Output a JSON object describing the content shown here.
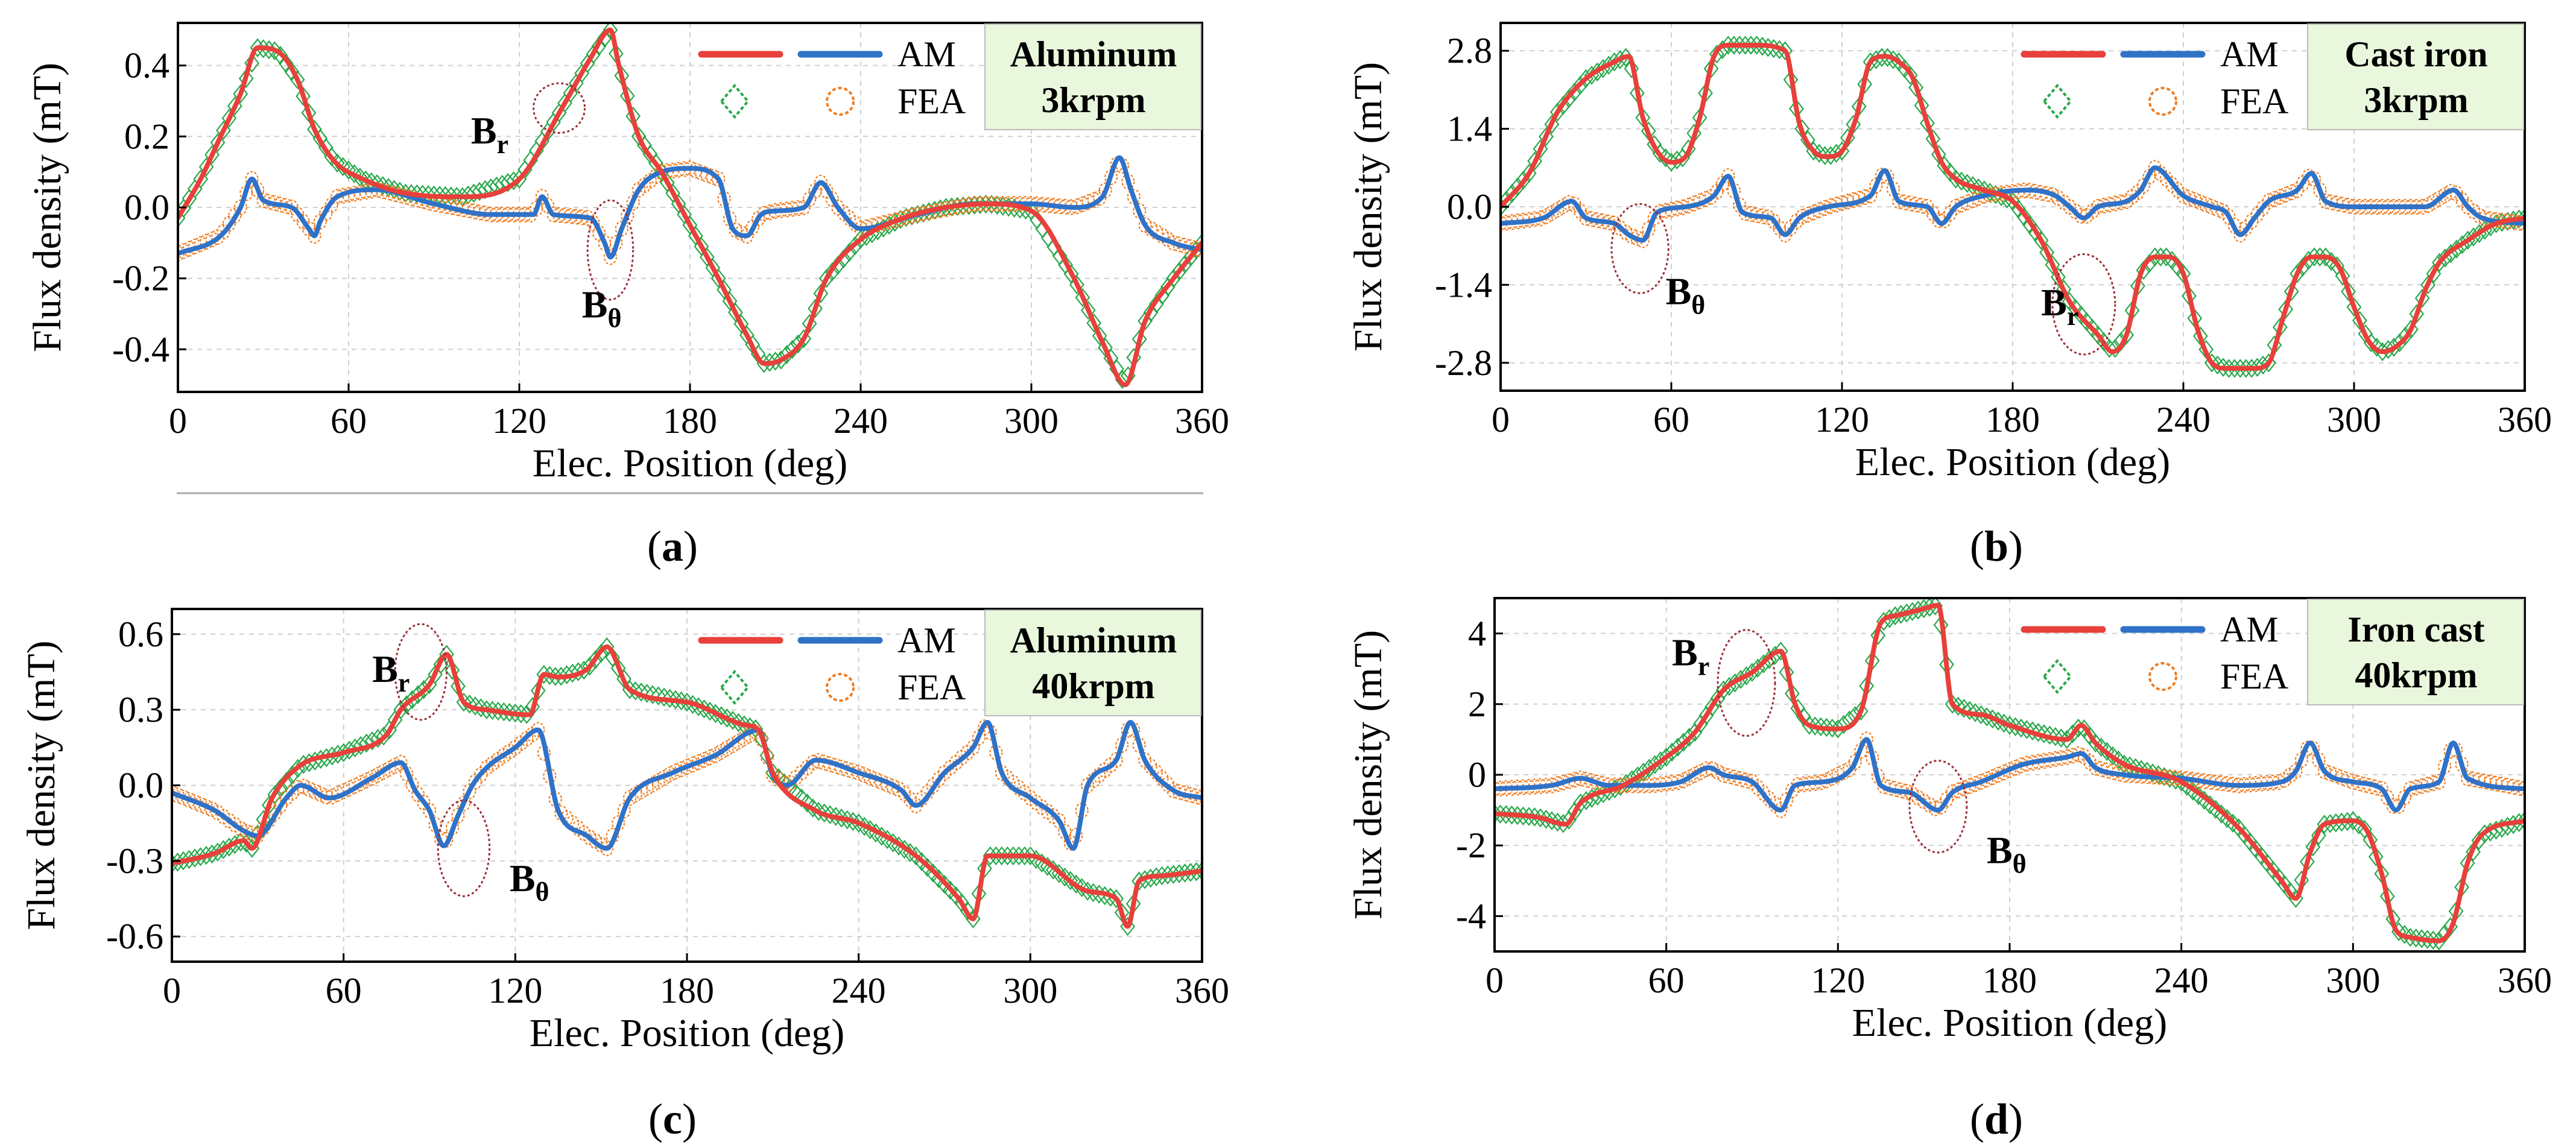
{
  "colors": {
    "am_br": "#e8403a",
    "am_bt": "#2f72c8",
    "fea_br": "#27a84a",
    "fea_bt": "#ef7d22",
    "ellipse": "#9b2d35",
    "grid": "#cfcfcf",
    "material_box": "#e9f7dd"
  },
  "chart_data": [
    {
      "type": "line",
      "panel_label": "(a)",
      "material": "Aluminum",
      "speed": "3krpm",
      "xlabel": "Elec. Position (deg)",
      "ylabel": "Flux density (mT)",
      "xlim": [
        0,
        360
      ],
      "ylim": [
        -0.52,
        0.52
      ],
      "xticks": [
        0,
        60,
        120,
        180,
        240,
        300,
        360
      ],
      "yticks": [
        -0.4,
        -0.2,
        0.0,
        0.2,
        0.4
      ],
      "ytick_labels": [
        "-0.4",
        "-0.2",
        "0.0",
        "0.2",
        "0.4"
      ],
      "legend": {
        "am": "AM",
        "fea": "FEA"
      },
      "annotations": [
        {
          "main": "B",
          "sub": "r",
          "x": 103,
          "y": 0.18,
          "ex": 134,
          "ey": 0.28,
          "erx": 9,
          "ery": 0.07
        },
        {
          "main": "B",
          "sub": "θ",
          "x": 142,
          "y": -0.31,
          "ex": 152,
          "ey": -0.12,
          "erx": 8,
          "ery": 0.14
        }
      ],
      "series": [
        {
          "name": "AM B_r",
          "role": "am_br",
          "x": [
            0,
            8,
            15,
            22,
            28,
            35,
            42,
            48,
            55,
            65,
            80,
            100,
            120,
            135,
            145,
            152,
            155,
            162,
            170,
            180,
            190,
            200,
            206,
            212,
            220,
            228,
            240,
            255,
            270,
            285,
            300,
            315,
            325,
            333,
            340,
            350,
            360
          ],
          "y": [
            -0.03,
            0.08,
            0.2,
            0.32,
            0.45,
            0.44,
            0.36,
            0.22,
            0.13,
            0.08,
            0.04,
            0.03,
            0.08,
            0.28,
            0.42,
            0.5,
            0.4,
            0.2,
            0.1,
            -0.05,
            -0.2,
            -0.36,
            -0.44,
            -0.43,
            -0.37,
            -0.2,
            -0.09,
            -0.03,
            0.0,
            0.01,
            -0.01,
            -0.2,
            -0.38,
            -0.5,
            -0.32,
            -0.2,
            -0.1
          ]
        },
        {
          "name": "AM B_θ",
          "role": "am_bt",
          "x": [
            0,
            15,
            22,
            26,
            30,
            40,
            46,
            48,
            50,
            56,
            70,
            90,
            110,
            125,
            128,
            132,
            145,
            150,
            152,
            156,
            162,
            170,
            180,
            190,
            195,
            200,
            205,
            210,
            220,
            226,
            232,
            240,
            260,
            280,
            300,
            315,
            325,
            331,
            335,
            340,
            350,
            360
          ],
          "y": [
            -0.13,
            -0.08,
            0.0,
            0.08,
            0.02,
            0.0,
            -0.06,
            -0.08,
            -0.04,
            0.03,
            0.05,
            0.01,
            -0.02,
            -0.02,
            0.03,
            -0.02,
            -0.03,
            -0.1,
            -0.14,
            -0.06,
            0.05,
            0.1,
            0.11,
            0.08,
            -0.06,
            -0.08,
            -0.02,
            -0.01,
            0.0,
            0.07,
            0.0,
            -0.06,
            -0.02,
            0.01,
            0.01,
            0.0,
            0.03,
            0.14,
            0.05,
            -0.05,
            -0.1,
            -0.12
          ]
        }
      ]
    },
    {
      "type": "line",
      "panel_label": "(b)",
      "material": "Cast iron",
      "speed": "3krpm",
      "xlabel": "Elec. Position (deg)",
      "ylabel": "Flux density (mT)",
      "xlim": [
        0,
        360
      ],
      "ylim": [
        -3.3,
        3.3
      ],
      "xticks": [
        0,
        60,
        120,
        180,
        240,
        300,
        360
      ],
      "yticks": [
        -2.8,
        -1.4,
        0.0,
        1.4,
        2.8
      ],
      "ytick_labels": [
        "-2.8",
        "-1.4",
        "0.0",
        "1.4",
        "2.8"
      ],
      "legend": {
        "am": "AM",
        "fea": "FEA"
      },
      "annotations": [
        {
          "main": "B",
          "sub": "θ",
          "x": 58,
          "y": -1.75,
          "ex": 49,
          "ey": -0.75,
          "erx": 10,
          "ery": 0.8
        },
        {
          "main": "B",
          "sub": "r",
          "x": 190,
          "y": -1.95,
          "ex": 205,
          "ey": -1.75,
          "erx": 11,
          "ery": 0.9
        }
      ],
      "series": [
        {
          "name": "AM B_r",
          "role": "am_br",
          "x": [
            0,
            10,
            20,
            30,
            40,
            45,
            50,
            55,
            60,
            65,
            70,
            75,
            80,
            90,
            100,
            105,
            110,
            115,
            120,
            125,
            130,
            135,
            140,
            145,
            150,
            155,
            160,
            170,
            180,
            190,
            200,
            210,
            215,
            220,
            225,
            230,
            235,
            240,
            245,
            250,
            255,
            260,
            265,
            270,
            275,
            280,
            285,
            290,
            295,
            300,
            305,
            310,
            315,
            320,
            325,
            330,
            340,
            350,
            360
          ],
          "y": [
            0.0,
            0.6,
            1.7,
            2.3,
            2.6,
            2.7,
            1.6,
            1.0,
            0.8,
            0.9,
            1.6,
            2.7,
            2.9,
            2.9,
            2.8,
            1.5,
            1.0,
            0.9,
            1.0,
            1.6,
            2.6,
            2.7,
            2.6,
            2.3,
            1.5,
            0.8,
            0.5,
            0.3,
            0.1,
            -0.6,
            -1.7,
            -2.3,
            -2.6,
            -2.3,
            -1.2,
            -0.9,
            -0.9,
            -1.2,
            -2.2,
            -2.8,
            -2.9,
            -2.9,
            -2.9,
            -2.8,
            -2.0,
            -1.2,
            -0.9,
            -0.9,
            -1.1,
            -1.8,
            -2.4,
            -2.6,
            -2.5,
            -2.2,
            -1.5,
            -1.0,
            -0.6,
            -0.3,
            -0.2
          ]
        },
        {
          "name": "AM B_θ",
          "role": "am_bt",
          "x": [
            0,
            15,
            25,
            30,
            40,
            45,
            50,
            55,
            65,
            75,
            80,
            85,
            95,
            100,
            105,
            115,
            130,
            135,
            140,
            150,
            155,
            160,
            170,
            185,
            195,
            200,
            205,
            210,
            220,
            225,
            230,
            240,
            250,
            255,
            260,
            265,
            270,
            280,
            285,
            290,
            300,
            315,
            325,
            335,
            340,
            345,
            360
          ],
          "y": [
            -0.3,
            -0.2,
            0.1,
            -0.2,
            -0.3,
            -0.5,
            -0.6,
            -0.1,
            0.0,
            0.2,
            0.55,
            -0.1,
            -0.2,
            -0.5,
            -0.2,
            0.0,
            0.2,
            0.65,
            0.1,
            0.0,
            -0.3,
            0.0,
            0.2,
            0.3,
            0.2,
            0.0,
            -0.2,
            0.0,
            0.1,
            0.3,
            0.7,
            0.2,
            0.0,
            -0.1,
            -0.5,
            -0.2,
            0.1,
            0.3,
            0.6,
            0.1,
            0.0,
            0.0,
            0.0,
            0.3,
            0.0,
            -0.2,
            -0.3
          ]
        }
      ]
    },
    {
      "type": "line",
      "panel_label": "(c)",
      "material": "Aluminum",
      "speed": "40krpm",
      "xlabel": "Elec. Position (deg)",
      "ylabel": "Flux density (mT)",
      "xlim": [
        0,
        360
      ],
      "ylim": [
        -0.7,
        0.7
      ],
      "xticks": [
        0,
        60,
        120,
        180,
        240,
        300,
        360
      ],
      "yticks": [
        -0.6,
        -0.3,
        0.0,
        0.3,
        0.6
      ],
      "ytick_labels": [
        "-0.6",
        "-0.3",
        "0.0",
        "0.3",
        "0.6"
      ],
      "legend": {
        "am": "AM",
        "fea": "FEA"
      },
      "annotations": [
        {
          "main": "B",
          "sub": "r",
          "x": 70,
          "y": 0.41,
          "ex": 87,
          "ey": 0.45,
          "erx": 9,
          "ery": 0.19
        },
        {
          "main": "B",
          "sub": "θ",
          "x": 118,
          "y": -0.42,
          "ex": 102,
          "ey": -0.25,
          "erx": 9,
          "ery": 0.19
        }
      ],
      "series": [
        {
          "name": "AM B_r",
          "role": "am_br",
          "x": [
            0,
            15,
            25,
            28,
            35,
            45,
            60,
            75,
            80,
            90,
            96,
            102,
            110,
            125,
            130,
            135,
            145,
            152,
            160,
            180,
            200,
            205,
            210,
            225,
            240,
            260,
            275,
            280,
            285,
            300,
            320,
            330,
            334,
            338,
            345,
            360
          ],
          "y": [
            -0.31,
            -0.27,
            -0.22,
            -0.25,
            -0.05,
            0.08,
            0.13,
            0.2,
            0.3,
            0.4,
            0.52,
            0.33,
            0.3,
            0.28,
            0.44,
            0.43,
            0.46,
            0.55,
            0.38,
            0.33,
            0.24,
            0.22,
            0.05,
            -0.1,
            -0.15,
            -0.28,
            -0.45,
            -0.53,
            -0.28,
            -0.28,
            -0.42,
            -0.45,
            -0.56,
            -0.38,
            -0.36,
            -0.34
          ]
        },
        {
          "name": "AM B_θ",
          "role": "am_bt",
          "x": [
            0,
            15,
            25,
            30,
            40,
            45,
            55,
            70,
            80,
            85,
            90,
            95,
            100,
            105,
            110,
            120,
            128,
            135,
            145,
            152,
            160,
            175,
            190,
            205,
            210,
            215,
            225,
            240,
            255,
            260,
            270,
            280,
            285,
            290,
            300,
            310,
            315,
            320,
            330,
            335,
            340,
            350,
            360
          ],
          "y": [
            -0.03,
            -0.1,
            -0.18,
            -0.2,
            -0.05,
            0.0,
            -0.05,
            0.03,
            0.09,
            -0.02,
            -0.1,
            -0.24,
            -0.12,
            0.0,
            0.07,
            0.15,
            0.22,
            -0.1,
            -0.2,
            -0.25,
            -0.05,
            0.05,
            0.12,
            0.22,
            0.04,
            0.0,
            0.1,
            0.05,
            -0.02,
            -0.08,
            0.05,
            0.15,
            0.25,
            0.05,
            -0.05,
            -0.14,
            -0.25,
            0.0,
            0.1,
            0.25,
            0.1,
            -0.02,
            -0.05
          ]
        }
      ]
    },
    {
      "type": "line",
      "panel_label": "(d)",
      "material": "Iron cast",
      "speed": "40krpm",
      "xlabel": "Elec. Position (deg)",
      "ylabel": "Flux density (mT)",
      "xlim": [
        0,
        360
      ],
      "ylim": [
        -5.0,
        5.0
      ],
      "xticks": [
        0,
        60,
        120,
        180,
        240,
        300,
        360
      ],
      "yticks": [
        -4,
        -2,
        0,
        2,
        4
      ],
      "ytick_labels": [
        "-4",
        "-2",
        "0",
        "2",
        "4"
      ],
      "legend": {
        "am": "AM",
        "fea": "FEA"
      },
      "annotations": [
        {
          "main": "B",
          "sub": "r",
          "x": 62,
          "y": 3.1,
          "ex": 88,
          "ey": 2.6,
          "erx": 10,
          "ery": 1.5
        },
        {
          "main": "B",
          "sub": "θ",
          "x": 172,
          "y": -2.5,
          "ex": 155,
          "ey": -0.9,
          "erx": 10,
          "ery": 1.3
        }
      ],
      "series": [
        {
          "name": "AM B_r",
          "role": "am_br",
          "x": [
            0,
            15,
            25,
            30,
            45,
            60,
            70,
            80,
            90,
            100,
            105,
            110,
            120,
            128,
            135,
            140,
            150,
            155,
            160,
            170,
            180,
            200,
            205,
            210,
            220,
            240,
            260,
            275,
            280,
            285,
            290,
            300,
            305,
            310,
            315,
            320,
            330,
            335,
            340,
            345,
            360
          ],
          "y": [
            -1.1,
            -1.2,
            -1.4,
            -0.8,
            -0.3,
            0.5,
            1.2,
            2.4,
            2.9,
            3.5,
            2.0,
            1.4,
            1.3,
            1.8,
            4.3,
            4.5,
            4.7,
            4.8,
            2.0,
            1.7,
            1.4,
            1.0,
            1.4,
            0.9,
            0.3,
            -0.2,
            -1.5,
            -3.0,
            -3.5,
            -2.2,
            -1.4,
            -1.3,
            -1.6,
            -2.8,
            -4.4,
            -4.6,
            -4.7,
            -4.2,
            -2.5,
            -1.7,
            -1.3
          ]
        },
        {
          "name": "AM B_θ",
          "role": "am_bt",
          "x": [
            0,
            20,
            30,
            40,
            55,
            65,
            75,
            80,
            90,
            100,
            105,
            115,
            125,
            130,
            135,
            145,
            155,
            160,
            170,
            185,
            200,
            205,
            210,
            220,
            240,
            260,
            275,
            280,
            285,
            290,
            300,
            310,
            315,
            320,
            330,
            335,
            340,
            360
          ],
          "y": [
            -0.4,
            -0.3,
            -0.1,
            -0.3,
            -0.3,
            -0.2,
            0.2,
            0.0,
            -0.2,
            -1.0,
            -0.3,
            -0.2,
            0.2,
            1.0,
            -0.3,
            -0.5,
            -1.0,
            -0.5,
            -0.2,
            0.3,
            0.5,
            0.6,
            0.2,
            0.0,
            -0.1,
            -0.3,
            -0.2,
            0.1,
            0.9,
            0.1,
            -0.2,
            -0.4,
            -1.0,
            -0.4,
            -0.2,
            0.9,
            -0.1,
            -0.4
          ]
        }
      ]
    }
  ]
}
